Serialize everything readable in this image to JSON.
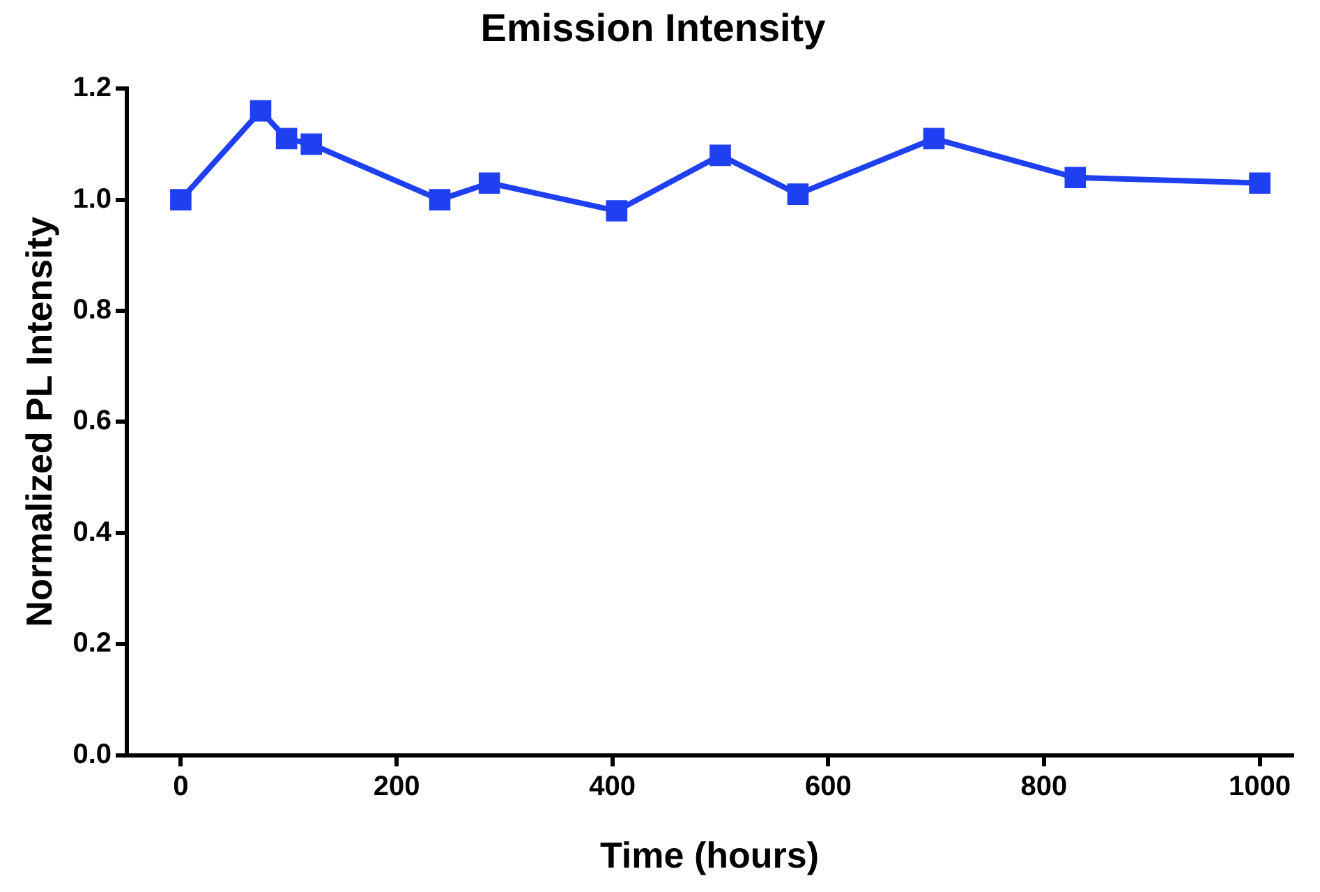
{
  "chart_data": {
    "type": "line",
    "title": "Emission Intensity",
    "xlabel": "Time (hours)",
    "ylabel": "Normalized PL Intensity",
    "x": [
      0,
      74,
      98,
      121,
      240,
      286,
      404,
      500,
      572,
      698,
      829,
      1000
    ],
    "series": [
      {
        "color": "#1f40f0",
        "values": [
          1.0,
          1.16,
          1.11,
          1.1,
          1.0,
          1.03,
          0.98,
          1.08,
          1.01,
          1.11,
          1.04,
          1.03
        ]
      }
    ],
    "xlim": [
      -50,
      1030
    ],
    "xticks": [
      0,
      200,
      400,
      600,
      800,
      1000
    ],
    "ylim": [
      0,
      1.2
    ],
    "yticks": [
      {
        "value": 0,
        "label": "0.0"
      },
      {
        "value": 0.2,
        "label": "0.2"
      },
      {
        "value": 0.4,
        "label": "0.4"
      },
      {
        "value": 0.6,
        "label": "0.6"
      },
      {
        "value": 0.8,
        "label": "0.8"
      },
      {
        "value": 1.0,
        "label": "1.0"
      },
      {
        "value": 1.2,
        "label": "1.2"
      }
    ],
    "grid": false,
    "legend": false,
    "marker": "square",
    "line_style": "solid"
  }
}
